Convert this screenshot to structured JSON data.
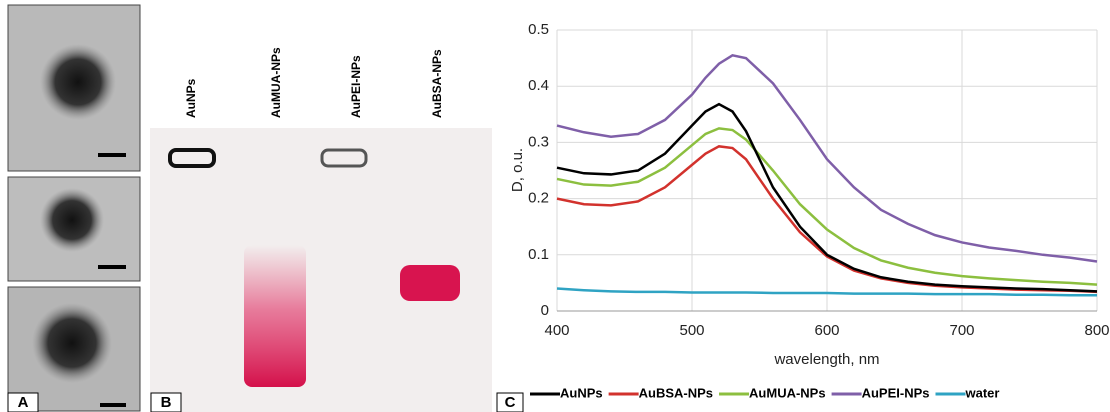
{
  "panels": {
    "a": {
      "label": "A"
    },
    "b": {
      "label": "B",
      "lanes": [
        "AuNPs",
        "AuMUA-NPs",
        "AuPEI-NPs",
        "AuBSA-NPs"
      ]
    },
    "c": {
      "label": "C"
    }
  },
  "chart_data": {
    "type": "line",
    "x_label": "wavelength, nm",
    "y_label": "D, o.u.",
    "x": [
      400,
      420,
      440,
      460,
      480,
      500,
      510,
      520,
      530,
      540,
      560,
      580,
      600,
      620,
      640,
      660,
      680,
      700,
      720,
      740,
      760,
      780,
      800
    ],
    "series": [
      {
        "name": "AuNPs",
        "color": "#000000",
        "values": [
          0.255,
          0.245,
          0.243,
          0.25,
          0.28,
          0.33,
          0.355,
          0.368,
          0.355,
          0.32,
          0.22,
          0.15,
          0.1,
          0.075,
          0.06,
          0.052,
          0.047,
          0.044,
          0.042,
          0.04,
          0.039,
          0.037,
          0.035
        ]
      },
      {
        "name": "AuBSA-NPs",
        "color": "#d2322d",
        "values": [
          0.2,
          0.19,
          0.188,
          0.195,
          0.22,
          0.26,
          0.28,
          0.293,
          0.29,
          0.27,
          0.2,
          0.14,
          0.097,
          0.072,
          0.058,
          0.05,
          0.045,
          0.042,
          0.04,
          0.038,
          0.037,
          0.036,
          0.034
        ]
      },
      {
        "name": "AuMUA-NPs",
        "color": "#8cbf3f",
        "values": [
          0.235,
          0.225,
          0.223,
          0.23,
          0.255,
          0.295,
          0.315,
          0.325,
          0.322,
          0.305,
          0.25,
          0.19,
          0.145,
          0.112,
          0.09,
          0.077,
          0.068,
          0.062,
          0.058,
          0.055,
          0.052,
          0.05,
          0.047
        ]
      },
      {
        "name": "AuPEI-NPs",
        "color": "#7f5fa8",
        "values": [
          0.33,
          0.318,
          0.31,
          0.315,
          0.34,
          0.385,
          0.415,
          0.44,
          0.455,
          0.45,
          0.405,
          0.34,
          0.27,
          0.22,
          0.18,
          0.155,
          0.135,
          0.122,
          0.113,
          0.107,
          0.1,
          0.095,
          0.088
        ]
      },
      {
        "name": "water",
        "color": "#2fa3c3",
        "values": [
          0.04,
          0.037,
          0.035,
          0.034,
          0.034,
          0.033,
          0.033,
          0.033,
          0.033,
          0.033,
          0.032,
          0.032,
          0.032,
          0.031,
          0.031,
          0.031,
          0.03,
          0.03,
          0.03,
          0.029,
          0.029,
          0.028,
          0.028
        ]
      }
    ],
    "xlim": [
      400,
      800
    ],
    "xticks": [
      400,
      500,
      600,
      700,
      800
    ],
    "ylim": [
      0,
      0.5
    ],
    "yticks": [
      0,
      0.1,
      0.2,
      0.3,
      0.4,
      0.5
    ],
    "grid": true,
    "legend": "bottom"
  }
}
